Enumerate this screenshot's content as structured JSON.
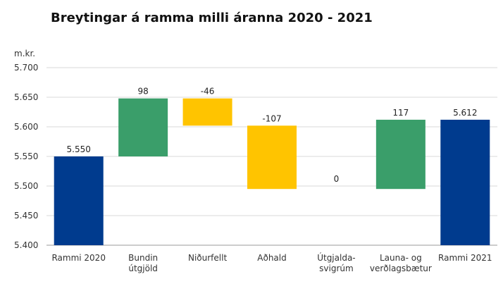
{
  "chart_data": {
    "type": "bar",
    "subtype": "waterfall",
    "title": "Breytingar á ramma milli áranna 2020 - 2021",
    "ylabel": "m.kr.",
    "ylim": [
      5400,
      5700
    ],
    "yticks": [
      5400,
      5450,
      5500,
      5550,
      5600,
      5650,
      5700
    ],
    "ytick_labels": [
      "5.400",
      "5.450",
      "5.500",
      "5.550",
      "5.600",
      "5.650",
      "5.700"
    ],
    "grid": true,
    "categories": [
      {
        "lines": [
          "Rammi 2020"
        ]
      },
      {
        "lines": [
          "Bundin",
          "útgjöld"
        ]
      },
      {
        "lines": [
          "Niðurfellt"
        ]
      },
      {
        "lines": [
          "Aðhald"
        ]
      },
      {
        "lines": [
          "Útgjalda-",
          "svigrúm"
        ]
      },
      {
        "lines": [
          "Launa- og",
          "verðlagsbætur"
        ]
      },
      {
        "lines": [
          "Rammi 2021"
        ]
      }
    ],
    "bars": [
      {
        "kind": "total",
        "start": 0,
        "end": 5550,
        "label": "5.550"
      },
      {
        "kind": "increase",
        "start": 5550,
        "end": 5648,
        "label": "98"
      },
      {
        "kind": "decrease",
        "start": 5648,
        "end": 5602,
        "label": "-46"
      },
      {
        "kind": "decrease",
        "start": 5602,
        "end": 5495,
        "label": "-107"
      },
      {
        "kind": "zero",
        "start": 5495,
        "end": 5495,
        "label": "0"
      },
      {
        "kind": "increase",
        "start": 5495,
        "end": 5612,
        "label": "117"
      },
      {
        "kind": "total",
        "start": 0,
        "end": 5612,
        "label": "5.612"
      }
    ],
    "colors": {
      "total": "#003b8e",
      "increase": "#3a9e6a",
      "decrease": "#ffc400",
      "grid": "#d9d9d9",
      "axis": "#999999"
    }
  }
}
